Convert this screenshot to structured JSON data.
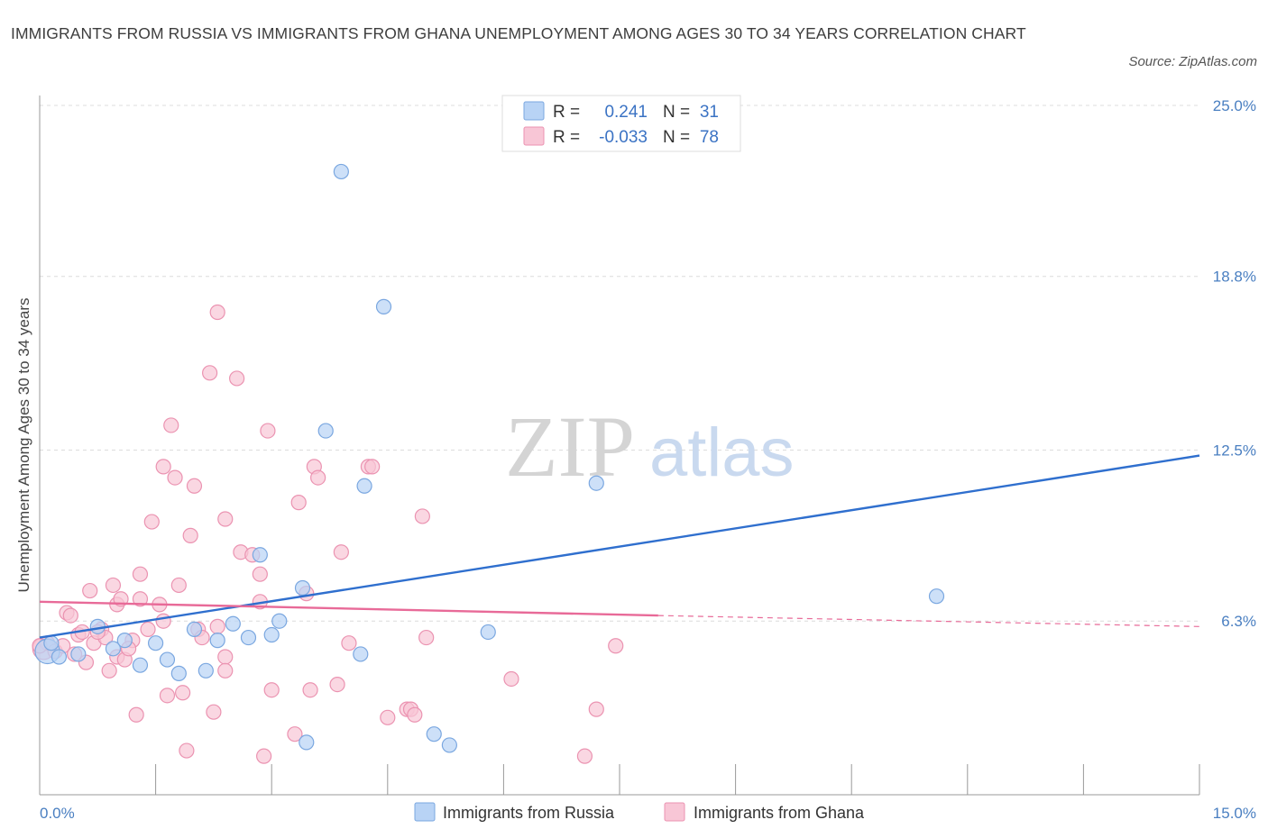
{
  "title": "IMMIGRANTS FROM RUSSIA VS IMMIGRANTS FROM GHANA UNEMPLOYMENT AMONG AGES 30 TO 34 YEARS CORRELATION CHART",
  "source": "Source: ZipAtlas.com",
  "watermark": {
    "zip": "ZIP",
    "atlas": "atlas"
  },
  "colors": {
    "russia_fill": "#b8d3f5",
    "russia_stroke": "#7aa7e0",
    "russia_line": "#2f6fce",
    "ghana_fill": "#f8c6d6",
    "ghana_stroke": "#eb93b1",
    "ghana_line": "#e86a98",
    "axis_label": "#4a7fc1",
    "grid": "#dcdcdc"
  },
  "legend": {
    "russia": {
      "r_label": "R =",
      "r_value": "0.241",
      "n_label": "N =",
      "n_value": "31"
    },
    "ghana": {
      "r_label": "R =",
      "r_value": "-0.033",
      "n_label": "N =",
      "n_value": "78"
    }
  },
  "chart_data": {
    "type": "scatter",
    "title": "IMMIGRANTS FROM RUSSIA VS IMMIGRANTS FROM GHANA UNEMPLOYMENT AMONG AGES 30 TO 34 YEARS CORRELATION CHART",
    "xlabel": "",
    "ylabel": "Unemployment Among Ages 30 to 34 years",
    "xlim": [
      0,
      15
    ],
    "ylim": [
      0,
      25
    ],
    "x_tick_labels": [
      {
        "value": 0,
        "label": "0.0%"
      },
      {
        "value": 15,
        "label": "15.0%"
      }
    ],
    "y_tick_labels": [
      {
        "value": 6.3,
        "label": "6.3%"
      },
      {
        "value": 12.5,
        "label": "12.5%"
      },
      {
        "value": 18.8,
        "label": "18.8%"
      },
      {
        "value": 25.0,
        "label": "25.0%"
      }
    ],
    "x_minor_ticks": [
      1.5,
      3.0,
      4.5,
      6.0,
      7.5,
      9.0,
      10.5,
      12.0,
      13.5,
      15.0
    ],
    "series": [
      {
        "name": "Immigrants from Russia",
        "color": "#7aa7e0",
        "points": [
          [
            0.1,
            5.2,
            1.7
          ],
          [
            0.25,
            5.0,
            1
          ],
          [
            0.5,
            5.1,
            1
          ],
          [
            0.75,
            6.1,
            1
          ],
          [
            0.95,
            5.3,
            1
          ],
          [
            1.1,
            5.6,
            1
          ],
          [
            1.3,
            4.7,
            1
          ],
          [
            1.5,
            5.5,
            1
          ],
          [
            1.65,
            4.9,
            1
          ],
          [
            1.8,
            4.4,
            1
          ],
          [
            2.0,
            6.0,
            1
          ],
          [
            2.15,
            4.5,
            1
          ],
          [
            2.3,
            5.6,
            1
          ],
          [
            2.5,
            6.2,
            1
          ],
          [
            2.7,
            5.7,
            1
          ],
          [
            2.85,
            8.7,
            1
          ],
          [
            3.0,
            5.8,
            1
          ],
          [
            3.1,
            6.3,
            1
          ],
          [
            3.4,
            7.5,
            1
          ],
          [
            3.45,
            1.9,
            1
          ],
          [
            3.7,
            13.2,
            1
          ],
          [
            3.9,
            22.6,
            1
          ],
          [
            4.15,
            5.1,
            1
          ],
          [
            4.2,
            11.2,
            1
          ],
          [
            4.45,
            17.7,
            1
          ],
          [
            5.1,
            2.2,
            1
          ],
          [
            5.3,
            1.8,
            1
          ],
          [
            5.8,
            5.9,
            1
          ],
          [
            7.2,
            11.3,
            1
          ],
          [
            11.6,
            7.2,
            1
          ],
          [
            0.15,
            5.5,
            1
          ]
        ]
      },
      {
        "name": "Immigrants from Ghana",
        "color": "#eb93b1",
        "points": [
          [
            0.05,
            5.3,
            1.5
          ],
          [
            0.1,
            5.5,
            1
          ],
          [
            0.2,
            5.2,
            1
          ],
          [
            0.3,
            5.4,
            1
          ],
          [
            0.35,
            6.6,
            1
          ],
          [
            0.4,
            6.5,
            1
          ],
          [
            0.5,
            5.8,
            1
          ],
          [
            0.55,
            5.9,
            1
          ],
          [
            0.6,
            4.8,
            1
          ],
          [
            0.65,
            7.4,
            1
          ],
          [
            0.7,
            5.5,
            1
          ],
          [
            0.8,
            6.0,
            1
          ],
          [
            0.85,
            5.7,
            1
          ],
          [
            0.9,
            4.5,
            1
          ],
          [
            0.95,
            7.6,
            1
          ],
          [
            1.0,
            5.0,
            1
          ],
          [
            1.0,
            6.9,
            1
          ],
          [
            1.05,
            7.1,
            1
          ],
          [
            1.1,
            4.9,
            1
          ],
          [
            1.2,
            5.6,
            1
          ],
          [
            1.25,
            2.9,
            1
          ],
          [
            1.3,
            8.0,
            1
          ],
          [
            1.3,
            7.1,
            1
          ],
          [
            1.4,
            6.0,
            1
          ],
          [
            1.45,
            9.9,
            1
          ],
          [
            1.55,
            6.9,
            1
          ],
          [
            1.6,
            6.3,
            1
          ],
          [
            1.6,
            11.9,
            1
          ],
          [
            1.65,
            3.6,
            1
          ],
          [
            1.7,
            13.4,
            1
          ],
          [
            1.75,
            11.5,
            1
          ],
          [
            1.8,
            7.6,
            1
          ],
          [
            1.85,
            3.7,
            1
          ],
          [
            1.9,
            1.6,
            1
          ],
          [
            1.95,
            9.4,
            1
          ],
          [
            2.0,
            11.2,
            1
          ],
          [
            2.05,
            6.0,
            1
          ],
          [
            2.2,
            15.3,
            1
          ],
          [
            2.25,
            3.0,
            1
          ],
          [
            2.3,
            17.5,
            1
          ],
          [
            2.3,
            6.1,
            1
          ],
          [
            2.4,
            5.0,
            1
          ],
          [
            2.4,
            10.0,
            1
          ],
          [
            2.4,
            4.5,
            1
          ],
          [
            2.55,
            15.1,
            1
          ],
          [
            2.6,
            8.8,
            1
          ],
          [
            2.75,
            8.7,
            1
          ],
          [
            2.85,
            8.0,
            1
          ],
          [
            2.85,
            7.0,
            1
          ],
          [
            2.9,
            1.4,
            1
          ],
          [
            2.95,
            13.2,
            1
          ],
          [
            3.0,
            3.8,
            1
          ],
          [
            3.3,
            2.2,
            1
          ],
          [
            3.35,
            10.6,
            1
          ],
          [
            3.45,
            7.3,
            1
          ],
          [
            3.5,
            3.8,
            1
          ],
          [
            3.55,
            11.9,
            1
          ],
          [
            3.6,
            11.5,
            1
          ],
          [
            3.85,
            4.0,
            1
          ],
          [
            3.9,
            8.8,
            1
          ],
          [
            4.0,
            5.5,
            1
          ],
          [
            4.25,
            11.9,
            1
          ],
          [
            4.3,
            11.9,
            1
          ],
          [
            4.5,
            2.8,
            1
          ],
          [
            4.75,
            3.1,
            1
          ],
          [
            4.8,
            3.1,
            1
          ],
          [
            4.85,
            2.9,
            1
          ],
          [
            4.95,
            10.1,
            1
          ],
          [
            5.0,
            5.7,
            1
          ],
          [
            6.1,
            4.2,
            1
          ],
          [
            7.05,
            1.4,
            1
          ],
          [
            7.2,
            3.1,
            1
          ],
          [
            7.45,
            5.4,
            1
          ],
          [
            0.0,
            5.4,
            1
          ],
          [
            0.45,
            5.1,
            1
          ],
          [
            1.15,
            5.3,
            1
          ],
          [
            0.75,
            5.9,
            1
          ],
          [
            2.1,
            5.7,
            1
          ]
        ]
      }
    ],
    "trend_lines": [
      {
        "name": "Immigrants from Russia",
        "x0": 0,
        "y0": 5.7,
        "x1": 15,
        "y1": 12.3,
        "style": "solid"
      },
      {
        "name": "Immigrants from Ghana",
        "x0": 0,
        "y0": 7.0,
        "x1": 8.0,
        "y1": 6.5,
        "style": "solid"
      },
      {
        "name": "Immigrants from Ghana",
        "x0": 8.0,
        "y0": 6.5,
        "x1": 15,
        "y1": 6.1,
        "style": "dashed"
      }
    ],
    "legend_labels": [
      "Immigrants from Russia",
      "Immigrants from Ghana"
    ]
  }
}
